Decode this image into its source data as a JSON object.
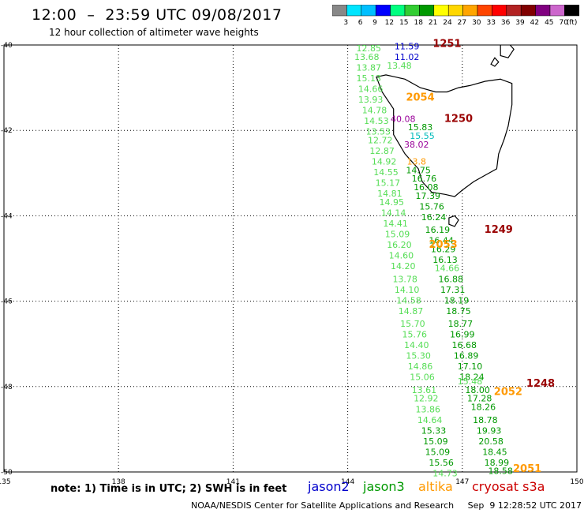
{
  "header": {
    "title": "12:00  –  23:59 UTC 09/08/2017",
    "subtitle": "12 hour collection of altimeter wave heights"
  },
  "colorbar": {
    "colors": [
      "#888888",
      "#00e5ff",
      "#00bfff",
      "#0000ff",
      "#00ff7f",
      "#32cd32",
      "#009900",
      "#ffff00",
      "#ffd700",
      "#ffa500",
      "#ff4500",
      "#ff0000",
      "#b22222",
      "#800000",
      "#800080",
      "#cc66cc",
      "#000000"
    ],
    "labels": [
      "3",
      "6",
      "9",
      "12",
      "15",
      "18",
      "21",
      "24",
      "27",
      "30",
      "33",
      "36",
      "39",
      "42",
      "45",
      "70",
      "(ft)"
    ]
  },
  "map": {
    "lat_labels": [
      {
        "value": "-40",
        "lat": -40
      },
      {
        "value": "-42",
        "lat": -42
      },
      {
        "value": "-44",
        "lat": -44
      },
      {
        "value": "-46",
        "lat": -46
      },
      {
        "value": "-48",
        "lat": -48
      },
      {
        "value": "-50",
        "lat": -50
      }
    ],
    "lon_labels": [
      {
        "value": "135",
        "lon": 135
      },
      {
        "value": "138",
        "lon": 138
      },
      {
        "value": "141",
        "lon": 141
      },
      {
        "value": "144",
        "lon": 144
      },
      {
        "value": "147",
        "lon": 147
      },
      {
        "value": "150",
        "lon": 150
      }
    ],
    "colors": {
      "jason2": "#0000cc",
      "jason3": "#009900",
      "altika": "#ff9900",
      "cryosat": "#cc0000",
      "light_green": "#55dd55",
      "violet": "#990099",
      "cyan": "#00bbbb",
      "dark_red": "#990000"
    },
    "time_labels": [
      {
        "text": "1251",
        "lat": -40.05,
        "lon": 146.6,
        "color": "dark_red"
      },
      {
        "text": "2054",
        "lat": -41.3,
        "lon": 145.9,
        "color": "altika"
      },
      {
        "text": "1250",
        "lat": -41.8,
        "lon": 146.9,
        "color": "dark_red"
      },
      {
        "text": "1249",
        "lat": -44.4,
        "lon": 147.95,
        "color": "dark_red"
      },
      {
        "text": "2053",
        "lat": -44.75,
        "lon": 146.5,
        "color": "altika"
      },
      {
        "text": "1248",
        "lat": -48.0,
        "lon": 149.05,
        "color": "dark_red"
      },
      {
        "text": "2052",
        "lat": -48.2,
        "lon": 148.2,
        "color": "altika"
      },
      {
        "text": "2051",
        "lat": -50.0,
        "lon": 148.7,
        "color": "altika"
      }
    ],
    "swh_labels": [
      {
        "text": "11.59",
        "lat": -40.1,
        "lon": 145.55,
        "color": "jason2"
      },
      {
        "text": "11.02",
        "lat": -40.35,
        "lon": 145.55,
        "color": "jason2"
      },
      {
        "text": "12.85",
        "lat": -40.15,
        "lon": 144.55,
        "color": "light_green"
      },
      {
        "text": "13.68",
        "lat": -40.35,
        "lon": 144.5,
        "color": "light_green"
      },
      {
        "text": "13.87",
        "lat": -40.6,
        "lon": 144.55,
        "color": "light_green"
      },
      {
        "text": "13.48",
        "lat": -40.55,
        "lon": 145.35,
        "color": "light_green"
      },
      {
        "text": "15.13",
        "lat": -40.85,
        "lon": 144.55,
        "color": "light_green"
      },
      {
        "text": "14.66",
        "lat": -41.1,
        "lon": 144.6,
        "color": "light_green"
      },
      {
        "text": "13.93",
        "lat": -41.35,
        "lon": 144.6,
        "color": "light_green"
      },
      {
        "text": "14.78",
        "lat": -41.6,
        "lon": 144.7,
        "color": "light_green"
      },
      {
        "text": "40.08",
        "lat": -41.8,
        "lon": 145.45,
        "color": "violet"
      },
      {
        "text": "14.53",
        "lat": -41.85,
        "lon": 144.75,
        "color": "light_green"
      },
      {
        "text": "15.83",
        "lat": -42.0,
        "lon": 145.9,
        "color": "jason3"
      },
      {
        "text": "13.53",
        "lat": -42.1,
        "lon": 144.8,
        "color": "light_green"
      },
      {
        "text": "15.55",
        "lat": -42.2,
        "lon": 145.95,
        "color": "cyan"
      },
      {
        "text": "12.72",
        "lat": -42.3,
        "lon": 144.85,
        "color": "light_green"
      },
      {
        "text": "38.02",
        "lat": -42.4,
        "lon": 145.8,
        "color": "violet"
      },
      {
        "text": "12.87",
        "lat": -42.55,
        "lon": 144.9,
        "color": "light_green"
      },
      {
        "text": "14.92",
        "lat": -42.8,
        "lon": 144.95,
        "color": "light_green"
      },
      {
        "text": "13.8",
        "lat": -42.8,
        "lon": 145.8,
        "color": "altika"
      },
      {
        "text": "14.75",
        "lat": -43.0,
        "lon": 145.85,
        "color": "jason3"
      },
      {
        "text": "14.55",
        "lat": -43.05,
        "lon": 145.0,
        "color": "light_green"
      },
      {
        "text": "16.76",
        "lat": -43.2,
        "lon": 146.0,
        "color": "jason3"
      },
      {
        "text": "15.17",
        "lat": -43.3,
        "lon": 145.05,
        "color": "light_green"
      },
      {
        "text": "16.08",
        "lat": -43.4,
        "lon": 146.05,
        "color": "jason3"
      },
      {
        "text": "14.81",
        "lat": -43.55,
        "lon": 145.1,
        "color": "light_green"
      },
      {
        "text": "17.39",
        "lat": -43.6,
        "lon": 146.1,
        "color": "jason3"
      },
      {
        "text": "14.95",
        "lat": -43.75,
        "lon": 145.15,
        "color": "light_green"
      },
      {
        "text": "15.76",
        "lat": -43.85,
        "lon": 146.2,
        "color": "jason3"
      },
      {
        "text": "14.14",
        "lat": -44.0,
        "lon": 145.2,
        "color": "light_green"
      },
      {
        "text": "16.24",
        "lat": -44.1,
        "lon": 146.25,
        "color": "jason3"
      },
      {
        "text": "14.41",
        "lat": -44.25,
        "lon": 145.25,
        "color": "light_green"
      },
      {
        "text": "16.19",
        "lat": -44.4,
        "lon": 146.35,
        "color": "jason3"
      },
      {
        "text": "15.09",
        "lat": -44.5,
        "lon": 145.3,
        "color": "light_green"
      },
      {
        "text": "16.44",
        "lat": -44.65,
        "lon": 146.45,
        "color": "jason3"
      },
      {
        "text": "16.20",
        "lat": -44.75,
        "lon": 145.35,
        "color": "light_green"
      },
      {
        "text": "16.29",
        "lat": -44.85,
        "lon": 146.5,
        "color": "jason3"
      },
      {
        "text": "14.60",
        "lat": -45.0,
        "lon": 145.4,
        "color": "light_green"
      },
      {
        "text": "16.13",
        "lat": -45.1,
        "lon": 146.55,
        "color": "jason3"
      },
      {
        "text": "14.20",
        "lat": -45.25,
        "lon": 145.45,
        "color": "light_green"
      },
      {
        "text": "14.66",
        "lat": -45.3,
        "lon": 146.6,
        "color": "light_green"
      },
      {
        "text": "16.88",
        "lat": -45.55,
        "lon": 146.7,
        "color": "jason3"
      },
      {
        "text": "13.78",
        "lat": -45.55,
        "lon": 145.5,
        "color": "light_green"
      },
      {
        "text": "17.31",
        "lat": -45.8,
        "lon": 146.75,
        "color": "jason3"
      },
      {
        "text": "14.10",
        "lat": -45.8,
        "lon": 145.55,
        "color": "light_green"
      },
      {
        "text": "18.19",
        "lat": -46.05,
        "lon": 146.85,
        "color": "jason3"
      },
      {
        "text": "14.58",
        "lat": -46.05,
        "lon": 145.6,
        "color": "light_green"
      },
      {
        "text": "18.75",
        "lat": -46.3,
        "lon": 146.9,
        "color": "jason3"
      },
      {
        "text": "14.87",
        "lat": -46.3,
        "lon": 145.65,
        "color": "light_green"
      },
      {
        "text": "18.77",
        "lat": -46.6,
        "lon": 146.95,
        "color": "jason3"
      },
      {
        "text": "15.70",
        "lat": -46.6,
        "lon": 145.7,
        "color": "light_green"
      },
      {
        "text": "16.99",
        "lat": -46.85,
        "lon": 147.0,
        "color": "jason3"
      },
      {
        "text": "15.76",
        "lat": -46.85,
        "lon": 145.75,
        "color": "light_green"
      },
      {
        "text": "16.68",
        "lat": -47.1,
        "lon": 147.05,
        "color": "jason3"
      },
      {
        "text": "14.40",
        "lat": -47.1,
        "lon": 145.8,
        "color": "light_green"
      },
      {
        "text": "16.89",
        "lat": -47.35,
        "lon": 147.1,
        "color": "jason3"
      },
      {
        "text": "15.30",
        "lat": -47.35,
        "lon": 145.85,
        "color": "light_green"
      },
      {
        "text": "17.10",
        "lat": -47.6,
        "lon": 147.2,
        "color": "jason3"
      },
      {
        "text": "14.86",
        "lat": -47.6,
        "lon": 145.9,
        "color": "light_green"
      },
      {
        "text": "18.24",
        "lat": -47.85,
        "lon": 147.25,
        "color": "jason3"
      },
      {
        "text": "15.06",
        "lat": -47.85,
        "lon": 145.95,
        "color": "light_green"
      },
      {
        "text": "15.48",
        "lat": -47.95,
        "lon": 147.2,
        "color": "light_green"
      },
      {
        "text": "18.00",
        "lat": -48.15,
        "lon": 147.4,
        "color": "jason3"
      },
      {
        "text": "13.61",
        "lat": -48.15,
        "lon": 146.0,
        "color": "light_green"
      },
      {
        "text": "17.28",
        "lat": -48.35,
        "lon": 147.45,
        "color": "jason3"
      },
      {
        "text": "12.92",
        "lat": -48.35,
        "lon": 146.05,
        "color": "light_green"
      },
      {
        "text": "18.26",
        "lat": -48.55,
        "lon": 147.55,
        "color": "jason3"
      },
      {
        "text": "13.86",
        "lat": -48.6,
        "lon": 146.1,
        "color": "light_green"
      },
      {
        "text": "18.78",
        "lat": -48.85,
        "lon": 147.6,
        "color": "jason3"
      },
      {
        "text": "14.64",
        "lat": -48.85,
        "lon": 146.15,
        "color": "light_green"
      },
      {
        "text": "19.93",
        "lat": -49.1,
        "lon": 147.7,
        "color": "jason3"
      },
      {
        "text": "15.33",
        "lat": -49.1,
        "lon": 146.25,
        "color": "jason3"
      },
      {
        "text": "20.58",
        "lat": -49.35,
        "lon": 147.75,
        "color": "jason3"
      },
      {
        "text": "15.09",
        "lat": -49.35,
        "lon": 146.3,
        "color": "jason3"
      },
      {
        "text": "18.45",
        "lat": -49.6,
        "lon": 147.85,
        "color": "jason3"
      },
      {
        "text": "15.09",
        "lat": -49.6,
        "lon": 146.35,
        "color": "jason3"
      },
      {
        "text": "18.99",
        "lat": -49.85,
        "lon": 147.9,
        "color": "jason3"
      },
      {
        "text": "15.56",
        "lat": -49.85,
        "lon": 146.45,
        "color": "jason3"
      },
      {
        "text": "18.58",
        "lat": -50.05,
        "lon": 148.0,
        "color": "jason3"
      },
      {
        "text": "14.73",
        "lat": -50.1,
        "lon": 146.55,
        "color": "light_green"
      }
    ],
    "islands": [
      [
        [
          145.25,
          -40.75
        ],
        [
          145.5,
          -40.8
        ],
        [
          145.9,
          -41.0
        ],
        [
          146.3,
          -41.1
        ],
        [
          146.6,
          -41.1
        ],
        [
          146.9,
          -41.0
        ],
        [
          147.2,
          -40.95
        ],
        [
          147.6,
          -40.85
        ],
        [
          148.0,
          -40.8
        ],
        [
          148.3,
          -40.9
        ],
        [
          148.3,
          -41.4
        ],
        [
          148.2,
          -41.9
        ],
        [
          148.1,
          -42.2
        ],
        [
          147.95,
          -42.55
        ],
        [
          147.9,
          -42.9
        ],
        [
          147.6,
          -43.05
        ],
        [
          147.3,
          -43.2
        ],
        [
          147.0,
          -43.4
        ],
        [
          146.8,
          -43.55
        ],
        [
          146.55,
          -43.5
        ],
        [
          146.2,
          -43.45
        ],
        [
          145.95,
          -43.2
        ],
        [
          145.85,
          -42.9
        ],
        [
          145.5,
          -42.55
        ],
        [
          145.2,
          -42.1
        ],
        [
          145.2,
          -41.5
        ],
        [
          144.9,
          -41.1
        ],
        [
          144.75,
          -40.75
        ],
        [
          145.0,
          -40.7
        ]
      ],
      [
        [
          146.65,
          -44.05
        ],
        [
          146.8,
          -44.0
        ],
        [
          146.9,
          -44.1
        ],
        [
          146.8,
          -44.25
        ],
        [
          146.65,
          -44.2
        ]
      ],
      [
        [
          148.0,
          -40.0
        ],
        [
          148.2,
          -39.95
        ],
        [
          148.35,
          -40.1
        ],
        [
          148.2,
          -40.3
        ],
        [
          148.0,
          -40.25
        ]
      ],
      [
        [
          147.85,
          -40.3
        ],
        [
          147.95,
          -40.4
        ],
        [
          147.85,
          -40.5
        ],
        [
          147.75,
          -40.45
        ]
      ],
      [
        [
          144.0,
          -39.65
        ],
        [
          144.1,
          -39.7
        ],
        [
          144.05,
          -39.85
        ],
        [
          143.95,
          -39.8
        ]
      ]
    ]
  },
  "footer": {
    "note": "note: 1) Time is in UTC; 2) SWH is in feet",
    "credit": "NOAA/NESDIS Center for Satellite Applications and Research     Sep  9 12:28:52 UTC 2017",
    "satellites": [
      {
        "name": "jason2",
        "color_key": "jason2"
      },
      {
        "name": "jason3",
        "color_key": "jason3"
      },
      {
        "name": "altika",
        "color_key": "altika"
      },
      {
        "name": "cryosat s3a",
        "color_key": "cryosat"
      }
    ]
  }
}
